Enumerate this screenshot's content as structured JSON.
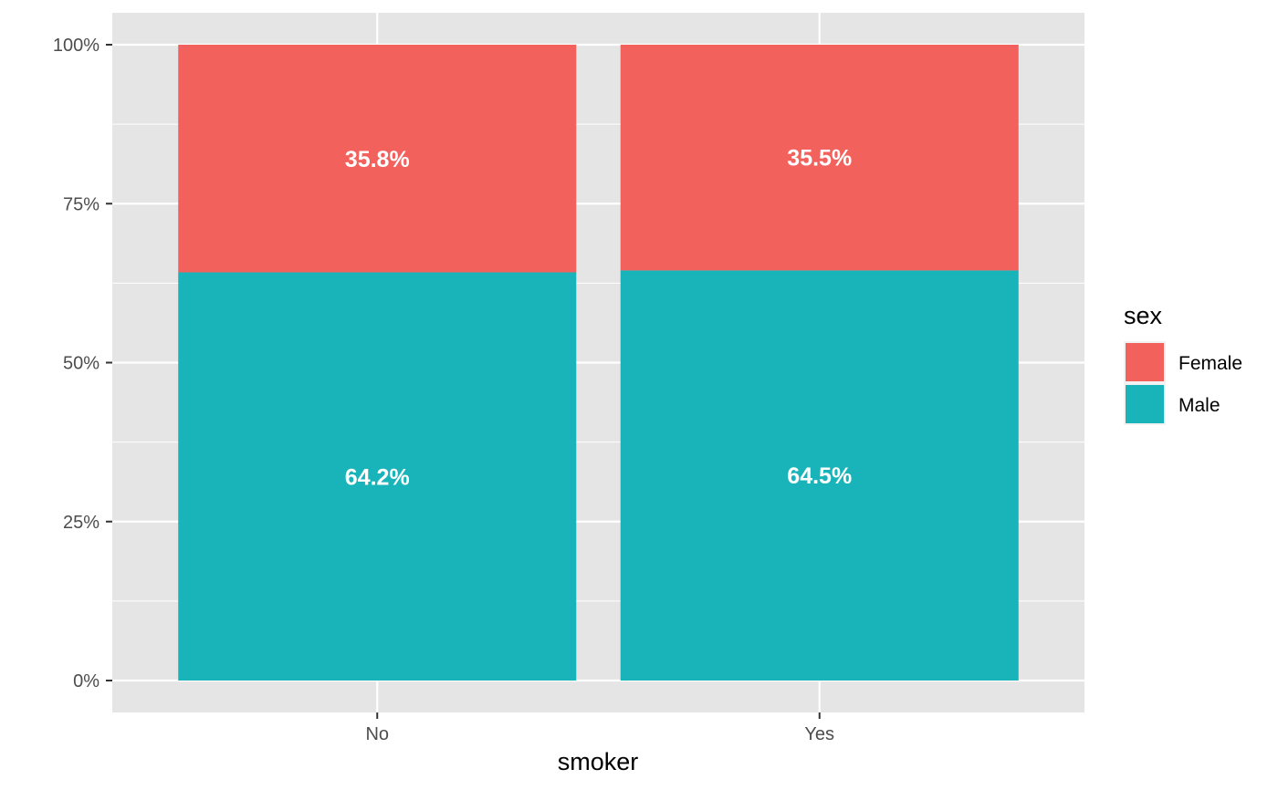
{
  "chart_data": {
    "type": "bar",
    "stacked": true,
    "categories": [
      "No",
      "Yes"
    ],
    "series": [
      {
        "name": "Male",
        "values": [
          64.2,
          64.5
        ],
        "labels": [
          "64.2%",
          "64.5%"
        ],
        "color": "#19b4b9"
      },
      {
        "name": "Female",
        "values": [
          35.8,
          35.5
        ],
        "labels": [
          "35.8%",
          "35.5%"
        ],
        "color": "#f3615d"
      }
    ],
    "title": "",
    "xlabel": "smoker",
    "ylabel": "",
    "ylim": [
      0,
      100
    ],
    "yticks": [
      0,
      25,
      50,
      75,
      100
    ],
    "ytick_labels": [
      "0%",
      "25%",
      "50%",
      "75%",
      "100%"
    ],
    "grid": true,
    "background": "#e5e5e5",
    "legend": {
      "title": "sex",
      "position": "right",
      "items": [
        {
          "label": "Female",
          "color": "#f3615d"
        },
        {
          "label": "Male",
          "color": "#19b4b9"
        }
      ]
    }
  }
}
